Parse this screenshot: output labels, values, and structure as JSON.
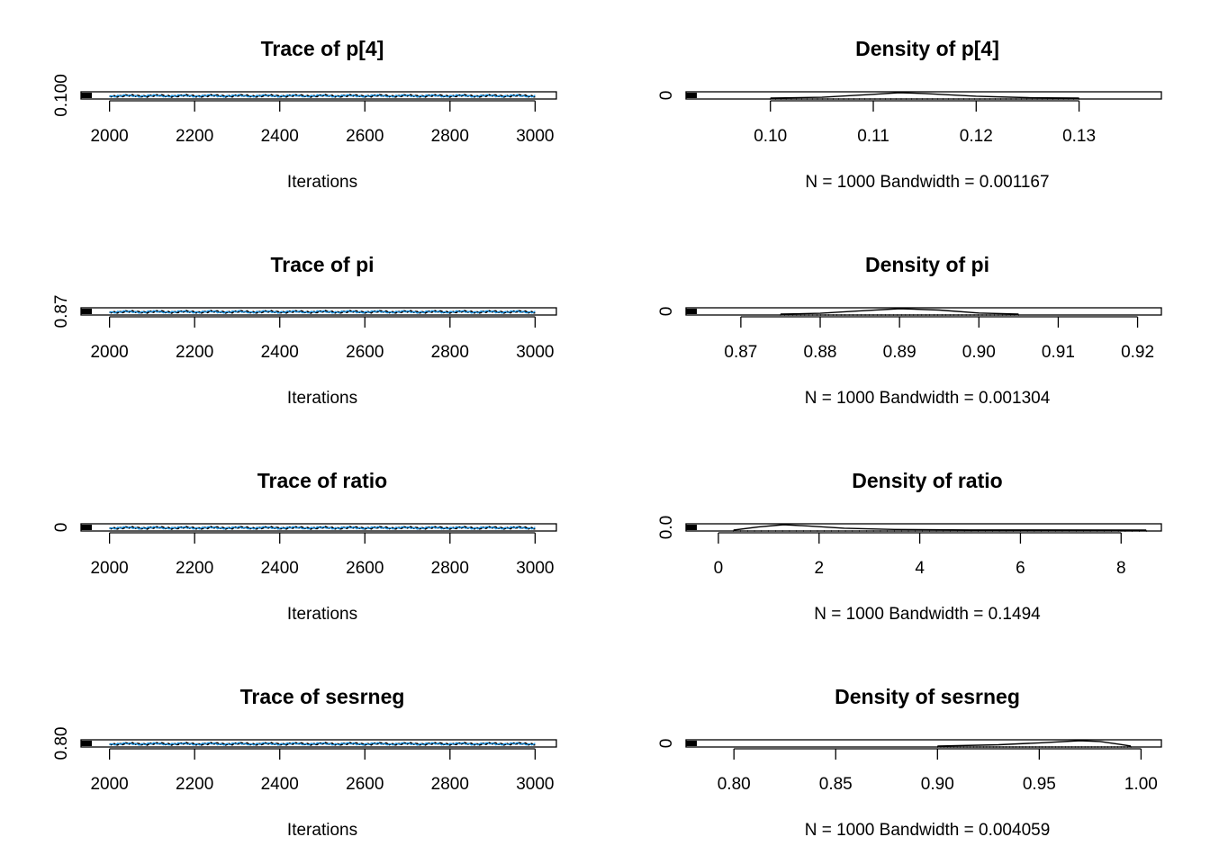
{
  "chart_data": [
    {
      "type": "line",
      "title": "Trace of p[4]",
      "xlabel": "Iterations",
      "ylabel": "",
      "x_ticks": [
        2000,
        2200,
        2400,
        2600,
        2800,
        3000
      ],
      "y_ticks": [
        "0.100"
      ],
      "xlim": [
        1950,
        3050
      ],
      "y_level": 0.113,
      "series": [
        {
          "color": "#000000",
          "x_range": [
            2000,
            3000
          ]
        },
        {
          "color": "#2297E6",
          "x_range": [
            2000,
            3000
          ]
        }
      ]
    },
    {
      "type": "line",
      "title": "Density of p[4]",
      "xlabel": "N = 1000   Bandwidth = 0.001167",
      "ylabel": "",
      "x_ticks": [
        "0.10",
        "0.11",
        "0.12",
        "0.13"
      ],
      "y_ticks": [
        "0"
      ],
      "xlim": [
        0.0925,
        0.138
      ],
      "x": [
        0.1,
        0.105,
        0.11,
        0.1125,
        0.115,
        0.12,
        0.125,
        0.13
      ],
      "y": [
        0.0,
        0.15,
        0.7,
        1.0,
        0.85,
        0.35,
        0.08,
        0.0
      ]
    },
    {
      "type": "line",
      "title": "Trace of pi",
      "xlabel": "Iterations",
      "ylabel": "",
      "x_ticks": [
        2000,
        2200,
        2400,
        2600,
        2800,
        3000
      ],
      "y_ticks": [
        "0.87"
      ],
      "xlim": [
        1950,
        3050
      ],
      "y_level": 0.89,
      "series": [
        {
          "color": "#000000",
          "x_range": [
            2000,
            3000
          ]
        },
        {
          "color": "#2297E6",
          "x_range": [
            2000,
            3000
          ]
        }
      ]
    },
    {
      "type": "line",
      "title": "Density of pi",
      "xlabel": "N = 1000   Bandwidth = 0.001304",
      "ylabel": "",
      "x_ticks": [
        "0.87",
        "0.88",
        "0.89",
        "0.90",
        "0.91",
        "0.92"
      ],
      "y_ticks": [
        "0"
      ],
      "xlim": [
        0.864,
        0.923
      ],
      "x": [
        0.875,
        0.88,
        0.885,
        0.89,
        0.895,
        0.9,
        0.905
      ],
      "y": [
        0.0,
        0.15,
        0.6,
        1.0,
        0.75,
        0.2,
        0.0
      ]
    },
    {
      "type": "line",
      "title": "Trace of ratio",
      "xlabel": "Iterations",
      "ylabel": "",
      "x_ticks": [
        2000,
        2200,
        2400,
        2600,
        2800,
        3000
      ],
      "y_ticks": [
        "0"
      ],
      "xlim": [
        1950,
        3050
      ],
      "y_level": 1.4,
      "series": [
        {
          "color": "#000000",
          "x_range": [
            2000,
            3000
          ]
        },
        {
          "color": "#2297E6",
          "x_range": [
            2000,
            3000
          ]
        }
      ]
    },
    {
      "type": "line",
      "title": "Density of ratio",
      "xlabel": "N = 1000   Bandwidth = 0.1494",
      "ylabel": "",
      "x_ticks": [
        "0",
        "2",
        "4",
        "6",
        "8"
      ],
      "y_ticks": [
        "0.0"
      ],
      "xlim": [
        -0.5,
        8.8
      ],
      "x": [
        0.3,
        0.8,
        1.3,
        1.9,
        2.5,
        3.5,
        5,
        8.5
      ],
      "y": [
        0.0,
        0.6,
        1.0,
        0.7,
        0.35,
        0.12,
        0.03,
        0.0
      ]
    },
    {
      "type": "line",
      "title": "Trace of sesrneg",
      "xlabel": "Iterations",
      "ylabel": "",
      "x_ticks": [
        2000,
        2200,
        2400,
        2600,
        2800,
        3000
      ],
      "y_ticks": [
        "0.80"
      ],
      "xlim": [
        1950,
        3050
      ],
      "y_level": 0.96,
      "series": [
        {
          "color": "#000000",
          "x_range": [
            2000,
            3000
          ]
        },
        {
          "color": "#2297E6",
          "x_range": [
            2000,
            3000
          ]
        }
      ]
    },
    {
      "type": "line",
      "title": "Density of sesrneg",
      "xlabel": "N = 1000   Bandwidth = 0.004059",
      "ylabel": "",
      "x_ticks": [
        "0.80",
        "0.85",
        "0.90",
        "0.95",
        "1.00"
      ],
      "y_ticks": [
        "0"
      ],
      "xlim": [
        0.78,
        1.01
      ],
      "x": [
        0.9,
        0.93,
        0.95,
        0.97,
        0.98,
        0.99,
        0.995
      ],
      "y": [
        0.0,
        0.25,
        0.6,
        1.0,
        0.85,
        0.3,
        0.0
      ]
    }
  ]
}
